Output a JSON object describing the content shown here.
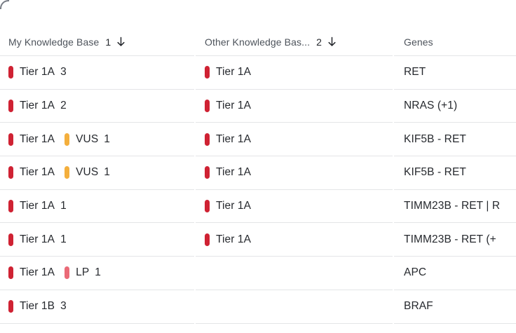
{
  "colors": {
    "tier": "#CF2233",
    "vus": "#F4AF3D",
    "lp": "#EA6A77",
    "divider": "#e4e5e7",
    "header_text": "#4d535b",
    "row_text": "#26292e"
  },
  "table": {
    "columns": [
      {
        "label": "My Knowledge Base",
        "sort_order": "1",
        "sort_dir": "desc"
      },
      {
        "label": "Other Knowledge Bas...",
        "sort_order": "2",
        "sort_dir": "desc"
      },
      {
        "label": "Genes"
      }
    ],
    "rows": [
      {
        "kb1": [
          {
            "kind": "tier",
            "label": "Tier 1A",
            "count": "3"
          }
        ],
        "kb2": [
          {
            "kind": "tier",
            "label": "Tier 1A"
          }
        ],
        "genes": "RET"
      },
      {
        "kb1": [
          {
            "kind": "tier",
            "label": "Tier 1A",
            "count": "2"
          }
        ],
        "kb2": [
          {
            "kind": "tier",
            "label": "Tier 1A"
          }
        ],
        "genes": "NRAS (+1)"
      },
      {
        "kb1": [
          {
            "kind": "tier",
            "label": "Tier 1A"
          },
          {
            "kind": "vus",
            "label": "VUS",
            "count": "1"
          }
        ],
        "kb2": [
          {
            "kind": "tier",
            "label": "Tier 1A"
          }
        ],
        "genes": "KIF5B - RET"
      },
      {
        "kb1": [
          {
            "kind": "tier",
            "label": "Tier 1A"
          },
          {
            "kind": "vus",
            "label": "VUS",
            "count": "1"
          }
        ],
        "kb2": [
          {
            "kind": "tier",
            "label": "Tier 1A"
          }
        ],
        "genes": "KIF5B - RET"
      },
      {
        "kb1": [
          {
            "kind": "tier",
            "label": "Tier 1A",
            "count": "1"
          }
        ],
        "kb2": [
          {
            "kind": "tier",
            "label": "Tier 1A"
          }
        ],
        "genes": "TIMM23B - RET | R"
      },
      {
        "kb1": [
          {
            "kind": "tier",
            "label": "Tier 1A",
            "count": "1"
          }
        ],
        "kb2": [
          {
            "kind": "tier",
            "label": "Tier 1A"
          }
        ],
        "genes": "TIMM23B - RET (+"
      },
      {
        "kb1": [
          {
            "kind": "tier",
            "label": "Tier 1A"
          },
          {
            "kind": "lp",
            "label": "LP",
            "count": "1"
          }
        ],
        "kb2": [],
        "genes": "APC"
      },
      {
        "kb1": [
          {
            "kind": "tier",
            "label": "Tier 1B",
            "count": "3"
          }
        ],
        "kb2": [],
        "genes": "BRAF"
      }
    ]
  }
}
